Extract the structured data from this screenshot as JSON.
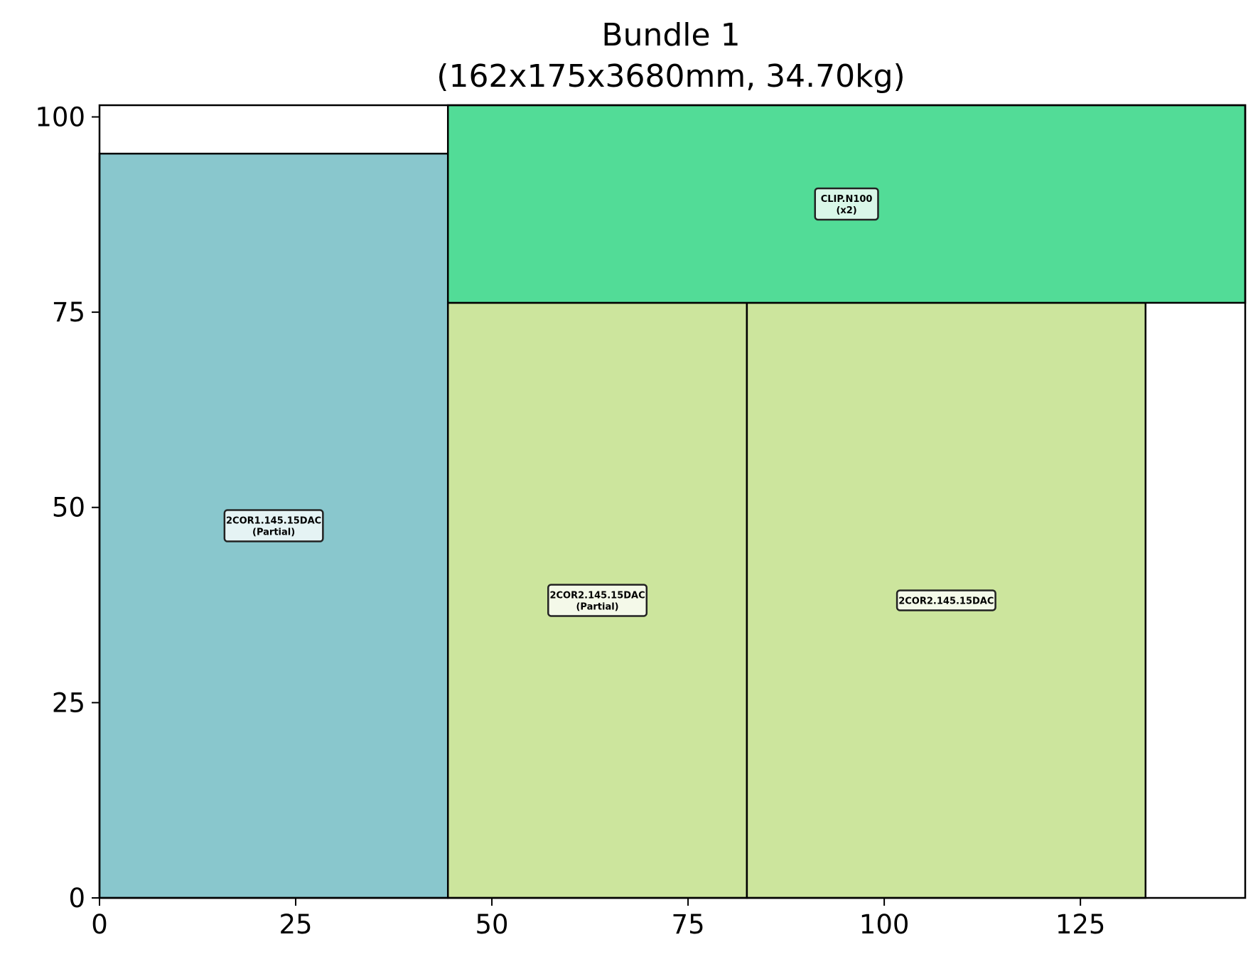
{
  "chart_data": {
    "type": "rectangle-packing",
    "title_lines": [
      "Bundle 1",
      "(162x175x3680mm, 34.70kg)"
    ],
    "xlabel": "",
    "ylabel": "",
    "xlim": [
      0,
      146
    ],
    "ylim": [
      0,
      101.5
    ],
    "xticks": [
      0,
      25,
      50,
      75,
      100,
      125
    ],
    "yticks": [
      0,
      25,
      50,
      75,
      100
    ],
    "grid": false,
    "items": [
      {
        "name": "2COR1.145.15DAC",
        "note": "(Partial)",
        "x": 0,
        "y": 0,
        "width": 44.4,
        "height": 95.3,
        "color": "#89c7cd"
      },
      {
        "name": "2COR2.145.15DAC",
        "note": "(Partial)",
        "x": 44.4,
        "y": 0,
        "width": 38.1,
        "height": 76.2,
        "color": "#cce59d"
      },
      {
        "name": "2COR2.145.15DAC",
        "note": "",
        "x": 82.5,
        "y": 0,
        "width": 50.8,
        "height": 76.2,
        "color": "#cce59d"
      },
      {
        "name": "CLIP.N100",
        "note": "(x2)",
        "x": 44.4,
        "y": 76.2,
        "width": 101.6,
        "height": 25.3,
        "color": "#52dc97"
      }
    ]
  }
}
